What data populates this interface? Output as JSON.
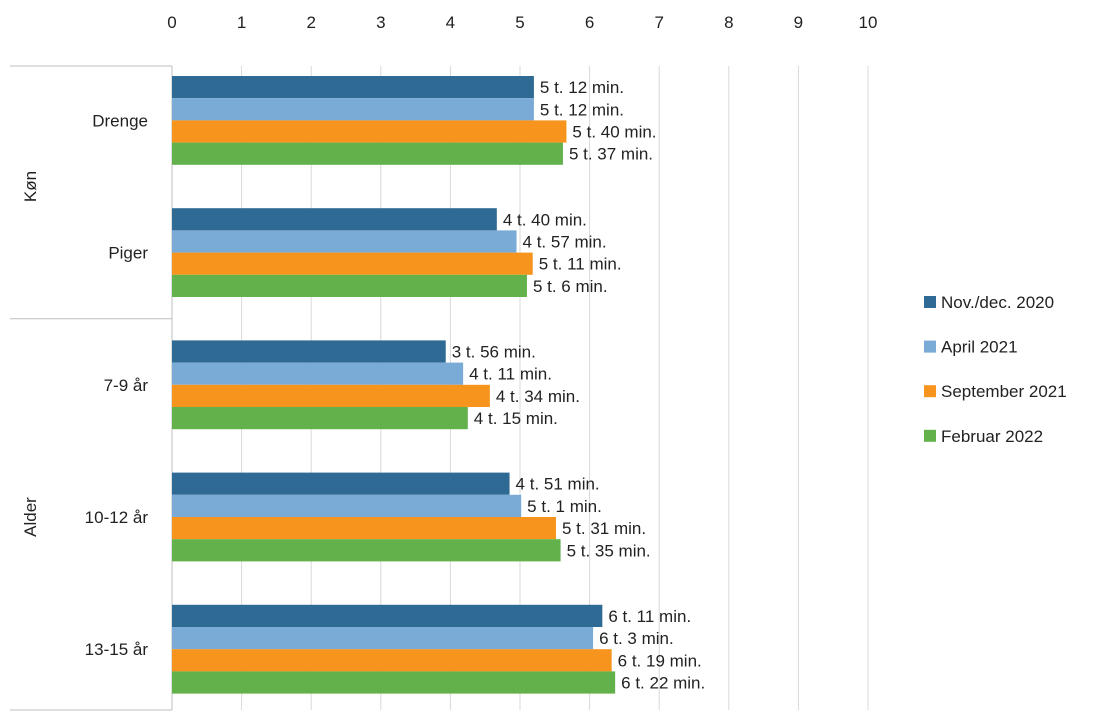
{
  "chart_data": {
    "type": "bar",
    "orientation": "horizontal",
    "x_ticks": [
      "0",
      "1",
      "2",
      "3",
      "4",
      "5",
      "6",
      "7",
      "8",
      "9",
      "10"
    ],
    "xlim": [
      0,
      10
    ],
    "grid": true,
    "legend_position": "right",
    "groups": [
      {
        "label": "Køn",
        "categories": [
          "Drenge",
          "Piger"
        ]
      },
      {
        "label": "Alder",
        "categories": [
          "7-9 år",
          "10-12 år",
          "13-15 år"
        ]
      }
    ],
    "categories": [
      "Drenge",
      "Piger",
      "7-9 år",
      "10-12 år",
      "13-15 år"
    ],
    "series": [
      {
        "name": "Nov./dec. 2020",
        "color": "#2E6A94",
        "values": [
          5.2,
          4.667,
          3.933,
          4.85,
          6.183
        ],
        "labels": [
          "5 t. 12 min.",
          "4 t. 40 min.",
          "3 t. 56 min.",
          "4 t. 51 min.",
          "6 t. 11 min."
        ]
      },
      {
        "name": "April 2021",
        "color": "#7AAAD6",
        "values": [
          5.2,
          4.95,
          4.183,
          5.017,
          6.05
        ],
        "labels": [
          "5 t. 12 min.",
          "4 t. 57 min.",
          "4 t. 11 min.",
          "5 t. 1 min.",
          "6 t. 3 min."
        ]
      },
      {
        "name": "September 2021",
        "color": "#F7941D",
        "values": [
          5.667,
          5.183,
          4.567,
          5.517,
          6.317
        ],
        "labels": [
          "5 t. 40 min.",
          "5 t. 11 min.",
          "4 t. 34 min.",
          "5 t. 31 min.",
          "6 t. 19 min."
        ]
      },
      {
        "name": "Februar 2022",
        "color": "#62B14A",
        "values": [
          5.617,
          5.1,
          4.25,
          5.583,
          6.367
        ],
        "labels": [
          "5 t. 37 min.",
          "5 t. 6 min.",
          "4 t. 15 min.",
          "5 t. 35 min.",
          "6 t. 22 min."
        ]
      }
    ]
  }
}
